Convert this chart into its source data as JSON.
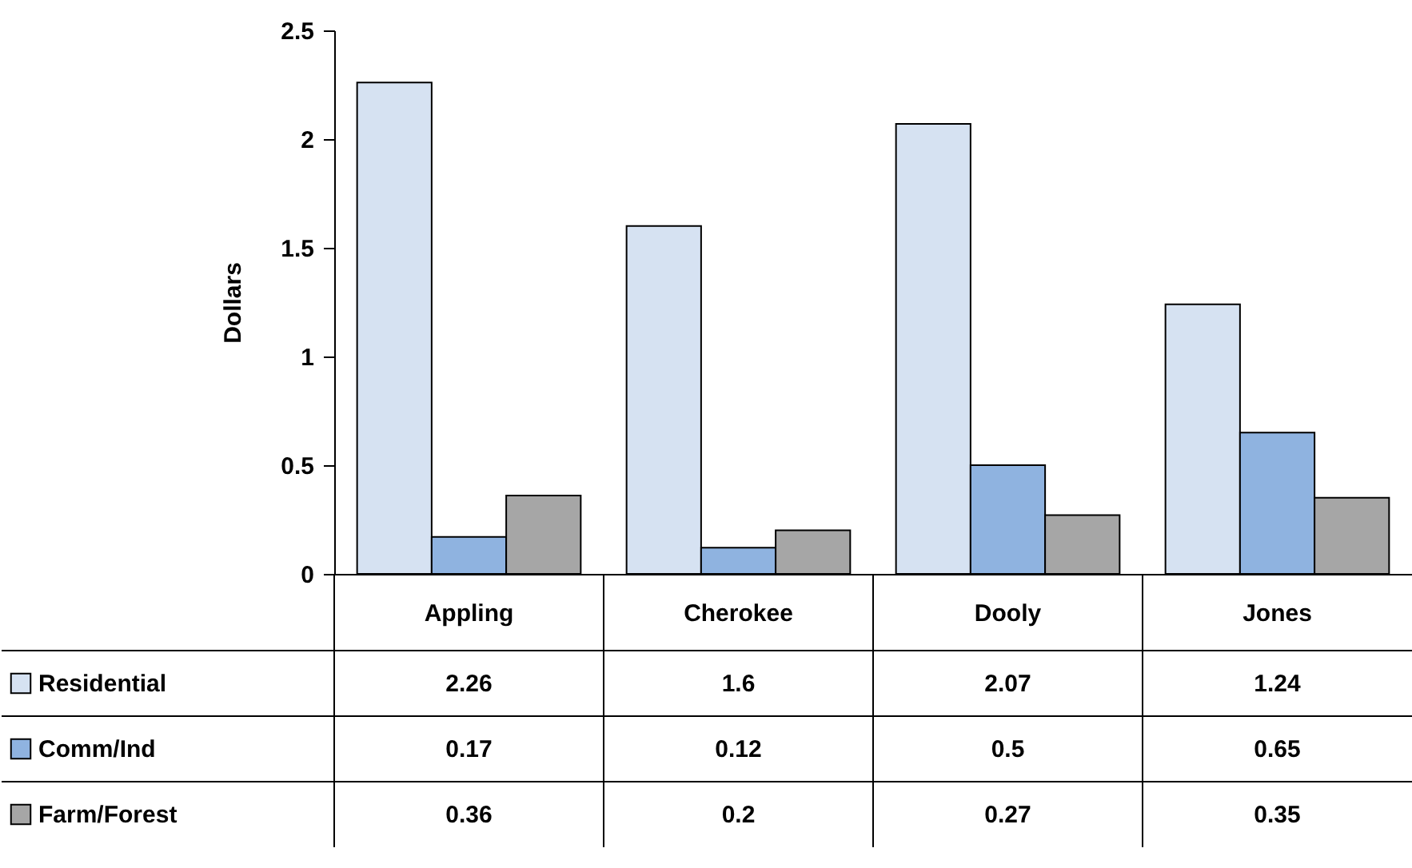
{
  "chart_data": {
    "type": "bar",
    "ylabel": "Dollars",
    "categories": [
      "Appling",
      "Cherokee",
      "Dooly",
      "Jones"
    ],
    "series": [
      {
        "name": "Residential",
        "color": "#d6e2f2",
        "values": [
          2.26,
          1.6,
          2.07,
          1.24
        ]
      },
      {
        "name": "Comm/Ind",
        "color": "#8fb3e0",
        "values": [
          0.17,
          0.12,
          0.5,
          0.65
        ]
      },
      {
        "name": "Farm/Forest",
        "color": "#a6a6a6",
        "values": [
          0.36,
          0.2,
          0.27,
          0.35
        ]
      }
    ],
    "ylim": [
      0,
      2.5
    ],
    "yticks": [
      0,
      0.5,
      1,
      1.5,
      2,
      2.5
    ],
    "data_labels": true,
    "legend": "bottom",
    "grid": false
  }
}
